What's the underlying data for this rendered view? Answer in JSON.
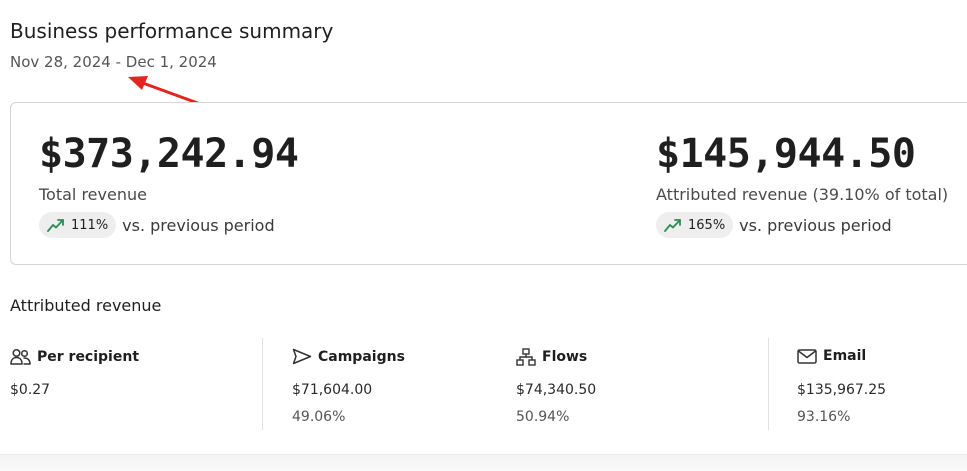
{
  "header": {
    "title": "Business performance summary",
    "date_range": "Nov 28, 2024 - Dec 1, 2024"
  },
  "summary": {
    "total": {
      "value": "$373,242.94",
      "label": "Total revenue",
      "change": "111%",
      "change_text": "vs. previous period"
    },
    "attributed": {
      "value": "$145,944.50",
      "label": "Attributed revenue (39.10% of total)",
      "change": "165%",
      "change_text": "vs. previous period"
    }
  },
  "attributed_section": {
    "title": "Attributed revenue",
    "columns": [
      {
        "name": "Per recipient",
        "icon": "users-icon",
        "value": "$0.27",
        "percent": ""
      },
      {
        "name": "Campaigns",
        "icon": "send-icon",
        "value": "$71,604.00",
        "percent": "49.06%"
      },
      {
        "name": "Flows",
        "icon": "flow-icon",
        "value": "$74,340.50",
        "percent": "50.94%"
      },
      {
        "name": "Email",
        "icon": "mail-icon",
        "value": "$135,967.25",
        "percent": "93.16%"
      }
    ]
  },
  "colors": {
    "annotation_arrow": "#e52420",
    "trend_up": "#2e8b57"
  }
}
